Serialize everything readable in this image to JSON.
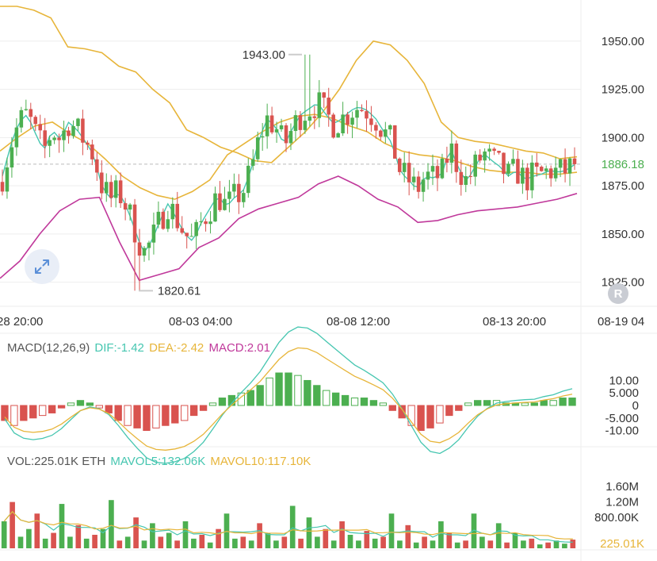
{
  "colors": {
    "up": "#4caf50",
    "down": "#d9534f",
    "boll_upper": "#e7b53a",
    "boll_mid": "#e7b53a",
    "boll_lower": "#c0399b",
    "ma_fast": "#46c6b0",
    "dif": "#46c6b0",
    "dea": "#e7b53a",
    "macd": "#c0399b",
    "price_tag": "#4caf50",
    "grid": "#eeeeee",
    "axis_text": "#333333"
  },
  "main": {
    "price_axis": [
      "1950.00",
      "1925.00",
      "1900.00",
      "1875.00",
      "1850.00",
      "1825.00"
    ],
    "current_price": "1886.18",
    "high_label": "1943.00",
    "low_label": "1820.61",
    "time_axis": [
      "28 20:00",
      "08-03 04:00",
      "08-08 12:00",
      "08-13 20:00",
      "08-19 04"
    ]
  },
  "macd": {
    "label": "MACD(12,26,9)",
    "dif": "DIF:-1.42",
    "dea": "DEA:-2.42",
    "macd": "MACD:2.01",
    "axis": [
      "10.00",
      "5.000",
      "0",
      "-5.000",
      "-10.00"
    ]
  },
  "volume": {
    "label": "VOL:225.01K ETH",
    "mavol5": "MAVOL5:132.06K",
    "mavol10": "MAVOL10:117.10K",
    "axis": [
      "1.60M",
      "1.20M",
      "800.00K"
    ],
    "current": "225.01K"
  },
  "chart_data": [
    {
      "type": "candlestick",
      "title": "",
      "ylim": [
        1815,
        1968
      ],
      "y_ticks": [
        1950,
        1925,
        1900,
        1875,
        1850,
        1825
      ],
      "x_tick_labels": [
        "28 20:00",
        "08-03 04:00",
        "08-08 12:00",
        "08-13 20:00",
        "08-19 04"
      ],
      "current_price": 1886.18,
      "high": 1943.0,
      "low": 1820.61,
      "close_path": [
        1880,
        1896,
        1908,
        1912,
        1902,
        1893,
        1904,
        1899,
        1908,
        1904,
        1898,
        1891,
        1875,
        1868,
        1872,
        1864,
        1852,
        1840,
        1846,
        1857,
        1866,
        1858,
        1850,
        1846,
        1856,
        1863,
        1870,
        1864,
        1869,
        1872,
        1883,
        1900,
        1910,
        1905,
        1896,
        1905,
        1912,
        1915,
        1918,
        1912,
        1907,
        1910,
        1914,
        1916,
        1914,
        1910,
        1903,
        1897,
        1882,
        1878,
        1873,
        1880,
        1879,
        1881,
        1895,
        1884,
        1877,
        1885,
        1892,
        1888,
        1885,
        1880,
        1883,
        1878,
        1880,
        1881,
        1883,
        1882,
        1883,
        1886
      ],
      "boll_upper_path": [
        1968,
        1968,
        1966,
        1962,
        1947,
        1946,
        1944,
        1937,
        1934,
        1925,
        1918,
        1904,
        1900,
        1895,
        1892,
        1888,
        1887,
        1895,
        1903,
        1913,
        1925,
        1940,
        1950,
        1948,
        1940,
        1928,
        1908,
        1900,
        1898,
        1897,
        1895,
        1893,
        1892,
        1889,
        1890
      ],
      "boll_mid_path": [
        1893,
        1900,
        1906,
        1908,
        1902,
        1897,
        1889,
        1880,
        1874,
        1870,
        1868,
        1872,
        1878,
        1891,
        1897,
        1903,
        1908,
        1911,
        1912,
        1910,
        1906,
        1903,
        1897,
        1893,
        1891,
        1890,
        1888,
        1885,
        1883,
        1882,
        1882,
        1881,
        1881,
        1882
      ],
      "boll_lower_path": [
        1827,
        1836,
        1850,
        1862,
        1868,
        1869,
        1846,
        1826,
        1829,
        1832,
        1843,
        1848,
        1858,
        1863,
        1866,
        1869,
        1876,
        1880,
        1875,
        1868,
        1864,
        1856,
        1857,
        1860,
        1862,
        1863,
        1864,
        1866,
        1868,
        1871
      ]
    },
    {
      "type": "bar",
      "title": "MACD(12,26,9)",
      "ylim": [
        -13,
        13
      ],
      "y_ticks": [
        10,
        5,
        0,
        -5,
        -10
      ],
      "dif": -1.42,
      "dea": -2.42,
      "macd": 2.01,
      "histogram": [
        -6,
        -8,
        -6,
        -5,
        -4,
        -3,
        -1,
        1,
        2,
        1,
        -1,
        -3,
        -6,
        -8,
        -9,
        -10,
        -9,
        -8,
        -7,
        -6,
        -4,
        -2,
        1,
        3,
        4,
        5,
        6,
        8,
        11,
        13,
        13,
        12,
        10,
        8,
        6,
        5,
        4,
        3,
        3,
        2,
        1,
        -2,
        -5,
        -8,
        -10,
        -9,
        -7,
        -4,
        -2,
        1,
        2,
        2,
        2,
        1,
        1,
        1,
        1,
        2,
        2,
        3,
        3
      ]
    },
    {
      "type": "bar",
      "title": "VOL",
      "ylim": [
        0,
        1900
      ],
      "unit": "K ETH",
      "y_ticks": [
        1600,
        1200,
        800
      ],
      "current": 225.01,
      "mavol5": 132.06,
      "mavol10": 117.1,
      "volumes": [
        700,
        1200,
        300,
        500,
        900,
        250,
        400,
        1150,
        300,
        600,
        250,
        350,
        500,
        1250,
        200,
        300,
        800,
        200,
        650,
        300,
        400,
        200,
        700,
        250,
        350,
        150,
        500,
        900,
        250,
        300,
        200,
        650,
        400,
        200,
        300,
        1100,
        250,
        800,
        300,
        500,
        200,
        700,
        350,
        200,
        450,
        250,
        300,
        900,
        200,
        600,
        150,
        300,
        200,
        700,
        400,
        150,
        200,
        900,
        300,
        200,
        650,
        150,
        400,
        200,
        250,
        100,
        150,
        200,
        120,
        225
      ]
    }
  ]
}
